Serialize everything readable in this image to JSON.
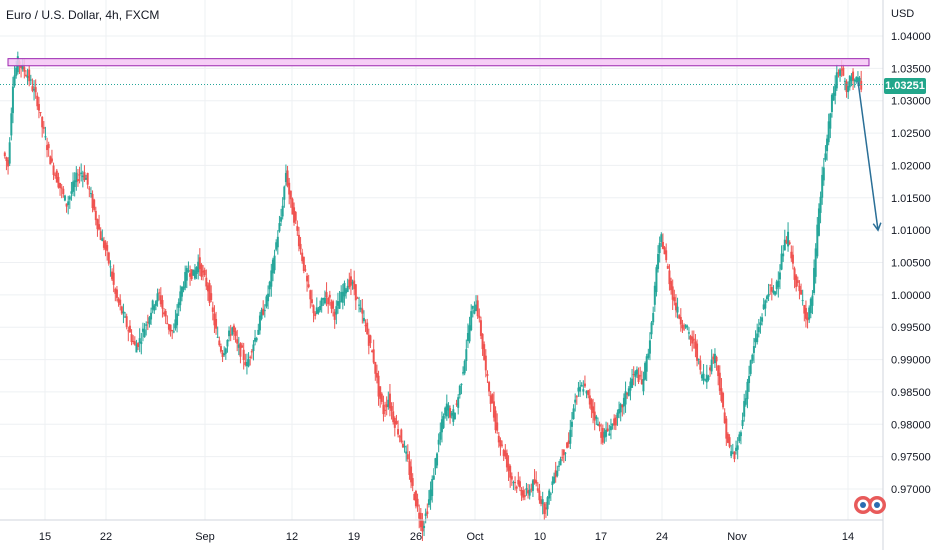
{
  "header": {
    "title": "Euro / U.S. Dollar, 4h, FXCM",
    "currency": "USD"
  },
  "price_badge": "1.03251",
  "colors": {
    "up": "#26a69a",
    "down": "#ef5350",
    "zone_fill": "#f4c6f5",
    "zone_stroke": "#9c27b0",
    "arrow": "#2a6f97",
    "price_line": "#26a69a"
  },
  "chart_data": {
    "type": "candlestick",
    "title": "Euro / U.S. Dollar, 4h, FXCM",
    "ylabel": "USD",
    "ylim": [
      0.9655,
      1.0425
    ],
    "y_ticks": [
      "1.04000",
      "1.03500",
      "1.03000",
      "1.02500",
      "1.02000",
      "1.01500",
      "1.01000",
      "1.00500",
      "1.00000",
      "0.99500",
      "0.99000",
      "0.98500",
      "0.98000",
      "0.97500",
      "0.97000"
    ],
    "x_ticks": [
      "15",
      "22",
      "Sep",
      "12",
      "19",
      "26",
      "Oct",
      "10",
      "17",
      "24",
      "Nov",
      "14"
    ],
    "last_price": 1.03251,
    "resistance_zone": [
      1.0354,
      1.0365
    ],
    "projection": {
      "from": 1.033,
      "to": 1.01
    },
    "grid": true,
    "path": [
      1.022,
      1.02,
      1.033,
      1.036,
      1.035,
      1.034,
      1.032,
      1.03,
      1.026,
      1.023,
      1.02,
      1.018,
      1.016,
      1.014,
      1.016,
      1.018,
      1.019,
      1.018,
      1.015,
      1.012,
      1.009,
      1.007,
      1.004,
      1.0,
      0.998,
      0.996,
      0.994,
      0.992,
      0.993,
      0.995,
      0.997,
      0.999,
      1.0,
      0.997,
      0.995,
      0.994,
      0.999,
      1.002,
      1.004,
      1.003,
      1.005,
      1.003,
      1.001,
      0.997,
      0.993,
      0.991,
      0.993,
      0.995,
      0.992,
      0.991,
      0.989,
      0.992,
      0.994,
      0.997,
      0.999,
      1.003,
      1.008,
      1.012,
      1.019,
      1.014,
      1.011,
      1.007,
      1.003,
      0.999,
      0.997,
      0.998,
      1.0,
      0.999,
      0.997,
      0.999,
      1.001,
      1.002,
      1.001,
      0.998,
      0.996,
      0.993,
      0.99,
      0.985,
      0.982,
      0.984,
      0.981,
      0.979,
      0.977,
      0.974,
      0.97,
      0.967,
      0.964,
      0.967,
      0.971,
      0.976,
      0.98,
      0.983,
      0.981,
      0.983,
      0.987,
      0.992,
      0.997,
      0.999,
      0.994,
      0.988,
      0.984,
      0.98,
      0.977,
      0.975,
      0.972,
      0.971,
      0.97,
      0.969,
      0.97,
      0.971,
      0.969,
      0.967,
      0.969,
      0.972,
      0.974,
      0.976,
      0.977,
      0.983,
      0.985,
      0.986,
      0.984,
      0.982,
      0.98,
      0.978,
      0.979,
      0.98,
      0.981,
      0.983,
      0.985,
      0.987,
      0.988,
      0.986,
      0.99,
      0.995,
      1.004,
      1.009,
      1.005,
      1.001,
      0.998,
      0.996,
      0.995,
      0.993,
      0.992,
      0.988,
      0.987,
      0.989,
      0.991,
      0.986,
      0.98,
      0.976,
      0.975,
      0.978,
      0.983,
      0.988,
      0.992,
      0.995,
      0.998,
      1.001,
      1.0,
      1.003,
      1.007,
      1.009,
      1.004,
      1.001,
      0.999,
      0.996,
      1.0,
      1.01,
      1.018,
      1.024,
      1.03,
      1.034,
      1.035,
      1.031,
      1.034,
      1.033,
      1.0325
    ]
  }
}
